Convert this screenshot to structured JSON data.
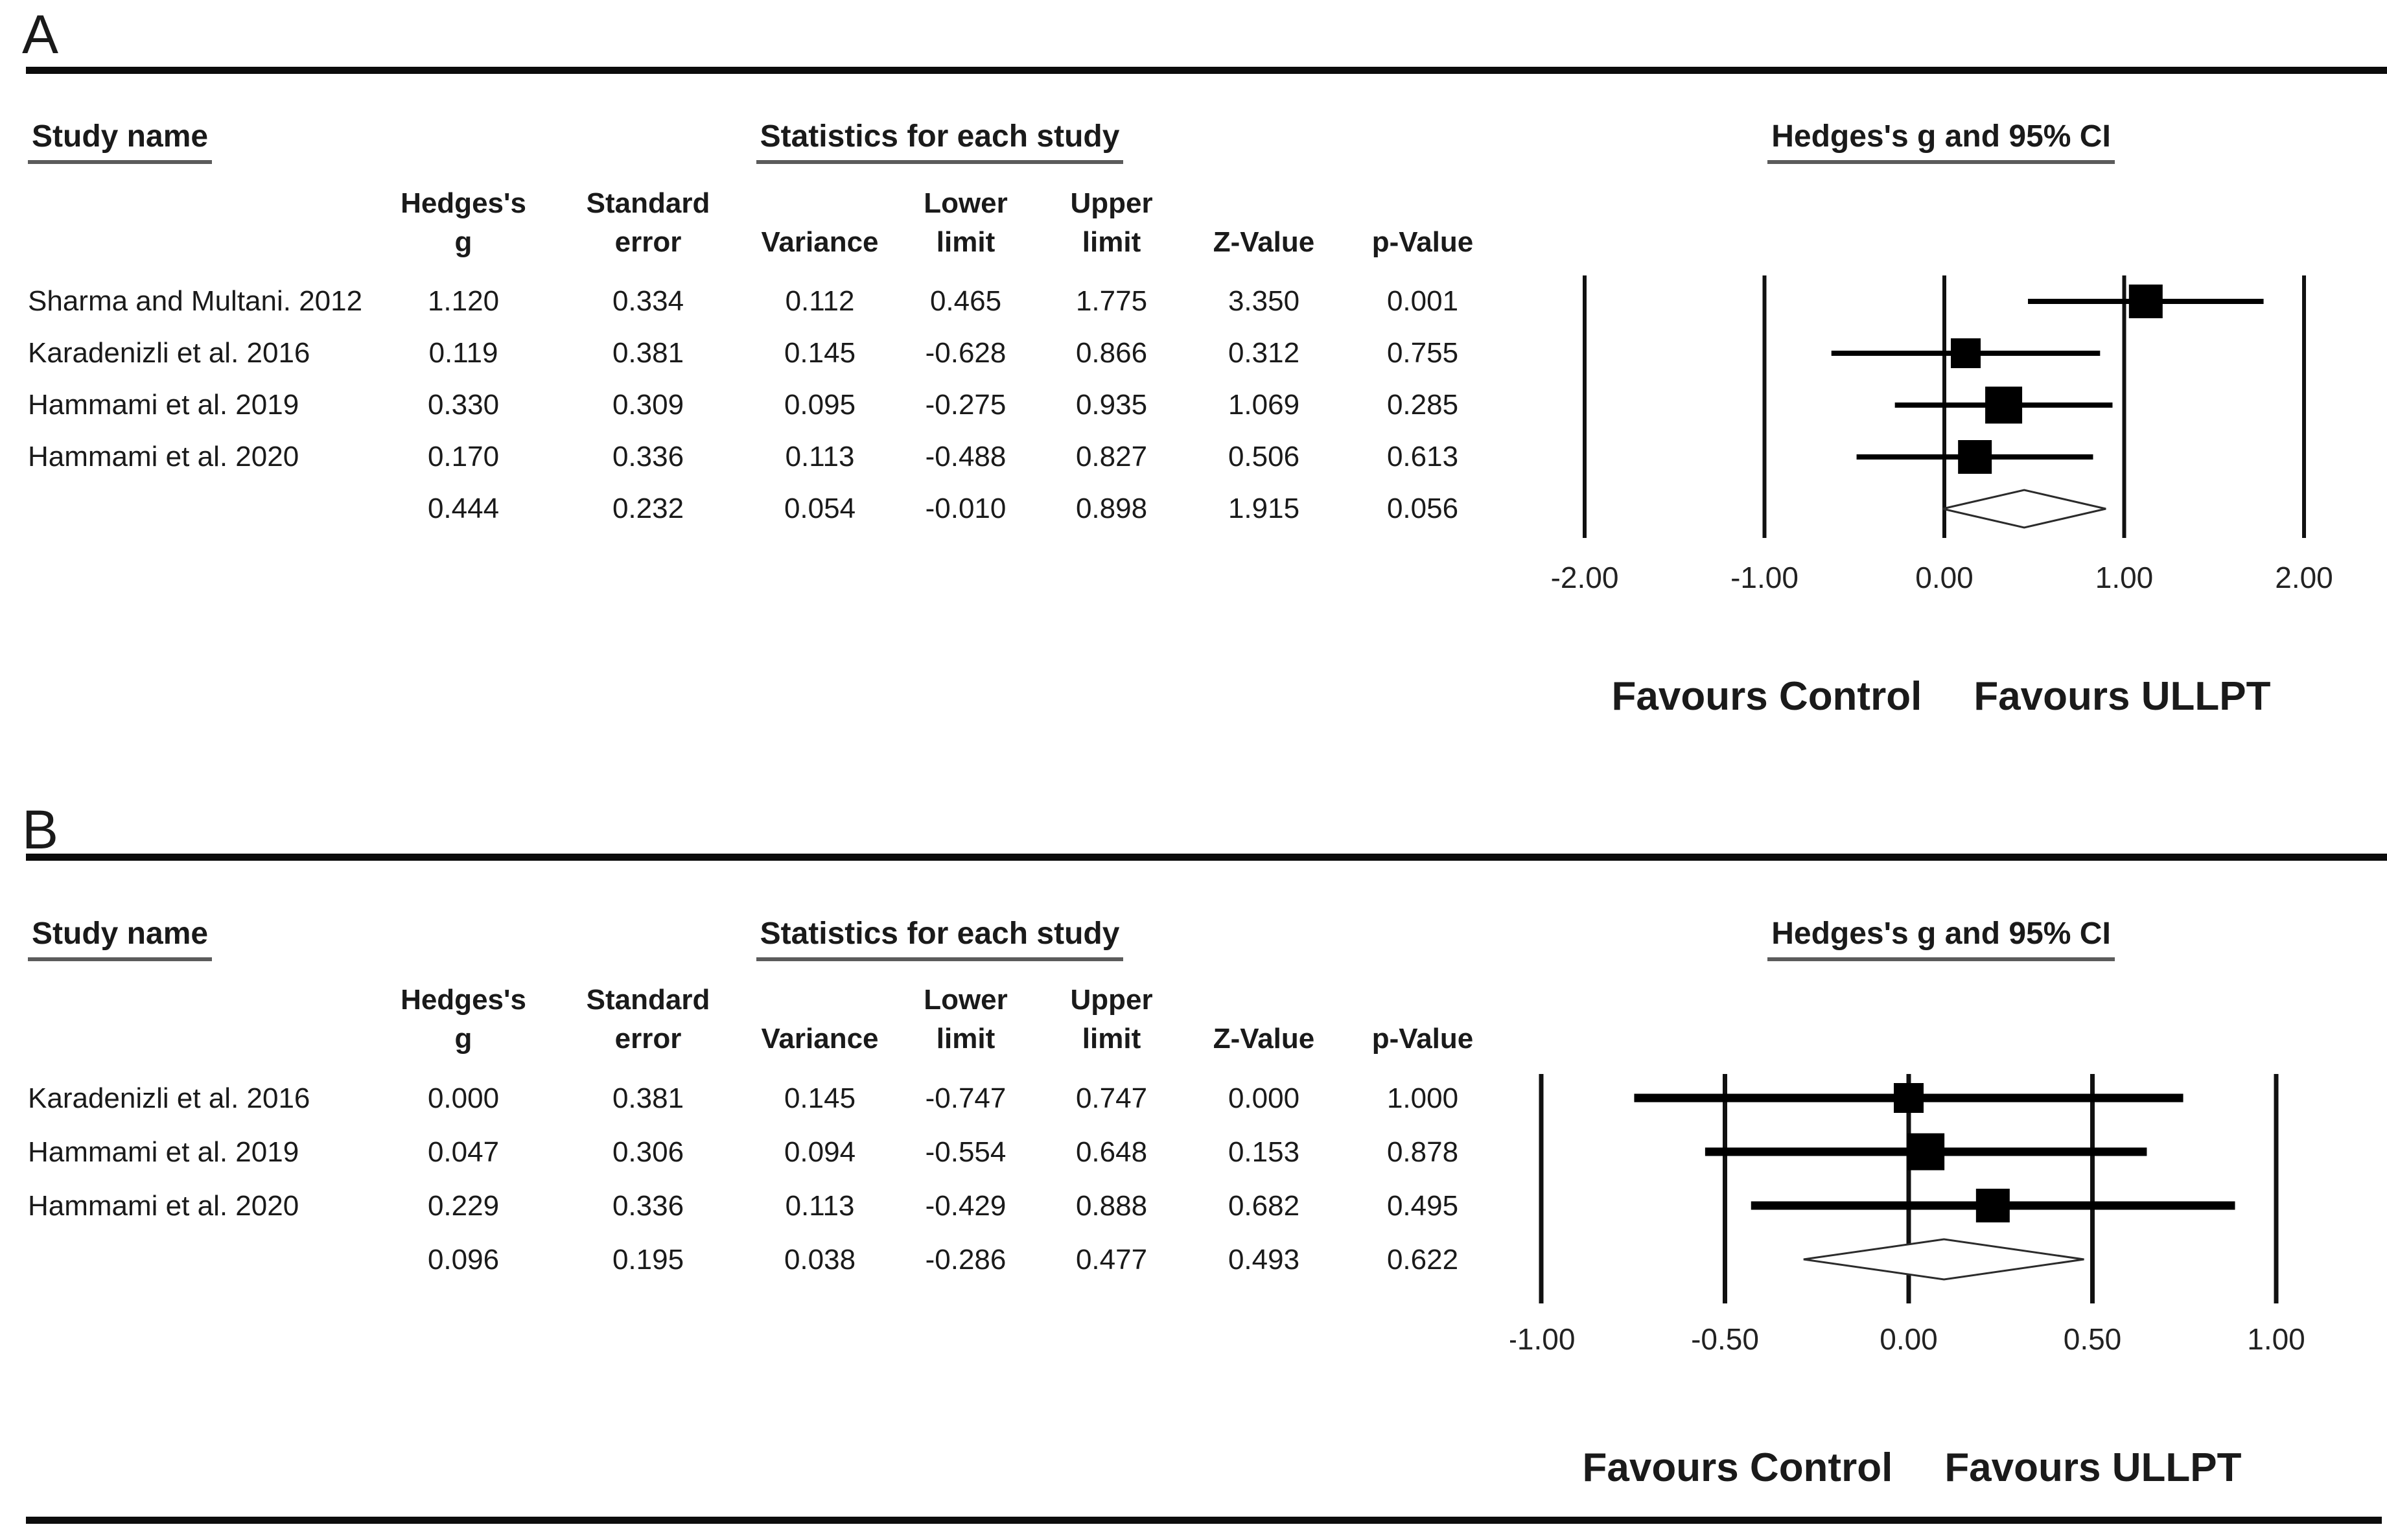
{
  "panels": [
    {
      "label": "A",
      "headers": {
        "study_name": "Study name",
        "statistics": "Statistics for each study",
        "plot": "Hedges's g and 95% CI"
      },
      "columns": {
        "line1": [
          "Hedges's",
          "Standard",
          "",
          "Lower",
          "Upper",
          "",
          ""
        ],
        "line2": [
          "g",
          "error",
          "Variance",
          "limit",
          "limit",
          "Z-Value",
          "p-Value"
        ]
      },
      "rows": [
        {
          "study": "Sharma and Multani. 2012",
          "g": "1.120",
          "se": "0.334",
          "variance": "0.112",
          "lower": "0.465",
          "upper": "1.775",
          "z": "3.350",
          "p": "0.001"
        },
        {
          "study": "Karadenizli et al. 2016",
          "g": "0.119",
          "se": "0.381",
          "variance": "0.145",
          "lower": "-0.628",
          "upper": "0.866",
          "z": "0.312",
          "p": "0.755"
        },
        {
          "study": "Hammami et al. 2019",
          "g": "0.330",
          "se": "0.309",
          "variance": "0.095",
          "lower": "-0.275",
          "upper": "0.935",
          "z": "1.069",
          "p": "0.285"
        },
        {
          "study": "Hammami et al. 2020",
          "g": "0.170",
          "se": "0.336",
          "variance": "0.113",
          "lower": "-0.488",
          "upper": "0.827",
          "z": "0.506",
          "p": "0.613"
        },
        {
          "study": "",
          "g": "0.444",
          "se": "0.232",
          "variance": "0.054",
          "lower": "-0.010",
          "upper": "0.898",
          "z": "1.915",
          "p": "0.056"
        }
      ],
      "axis_labels": [
        "-2.00",
        "-1.00",
        "0.00",
        "1.00",
        "2.00"
      ],
      "favours": {
        "left": "Favours Control",
        "right": "Favours ULLPT"
      }
    },
    {
      "label": "B",
      "headers": {
        "study_name": "Study name",
        "statistics": "Statistics for each study",
        "plot": "Hedges's g and 95% CI"
      },
      "columns": {
        "line1": [
          "Hedges's",
          "Standard",
          "",
          "Lower",
          "Upper",
          "",
          ""
        ],
        "line2": [
          "g",
          "error",
          "Variance",
          "limit",
          "limit",
          "Z-Value",
          "p-Value"
        ]
      },
      "rows": [
        {
          "study": "Karadenizli et al. 2016",
          "g": "0.000",
          "se": "0.381",
          "variance": "0.145",
          "lower": "-0.747",
          "upper": "0.747",
          "z": "0.000",
          "p": "1.000"
        },
        {
          "study": "Hammami et al. 2019",
          "g": "0.047",
          "se": "0.306",
          "variance": "0.094",
          "lower": "-0.554",
          "upper": "0.648",
          "z": "0.153",
          "p": "0.878"
        },
        {
          "study": "Hammami et al. 2020",
          "g": "0.229",
          "se": "0.336",
          "variance": "0.113",
          "lower": "-0.429",
          "upper": "0.888",
          "z": "0.682",
          "p": "0.495"
        },
        {
          "study": "",
          "g": "0.096",
          "se": "0.195",
          "variance": "0.038",
          "lower": "-0.286",
          "upper": "0.477",
          "z": "0.493",
          "p": "0.622"
        }
      ],
      "axis_labels": [
        "-1.00",
        "-0.50",
        "0.00",
        "0.50",
        "1.00"
      ],
      "favours": {
        "left": "Favours Control",
        "right": "Favours ULLPT"
      }
    }
  ],
  "chart_data": [
    {
      "type": "forest",
      "panel": "A",
      "title": "Hedges's g and 95% CI",
      "effect_measure": "Hedges's g",
      "x_axis": {
        "min": -2.0,
        "max": 2.0,
        "ticks": [
          -2.0,
          -1.0,
          0.0,
          1.0,
          2.0
        ]
      },
      "direction_labels": {
        "left": "Favours Control",
        "right": "Favours ULLPT"
      },
      "studies": [
        {
          "name": "Sharma and Multani. 2012",
          "g": 1.12,
          "se": 0.334,
          "variance": 0.112,
          "lower": 0.465,
          "upper": 1.775,
          "z": 3.35,
          "p": 0.001
        },
        {
          "name": "Karadenizli et al. 2016",
          "g": 0.119,
          "se": 0.381,
          "variance": 0.145,
          "lower": -0.628,
          "upper": 0.866,
          "z": 0.312,
          "p": 0.755
        },
        {
          "name": "Hammami et al. 2019",
          "g": 0.33,
          "se": 0.309,
          "variance": 0.095,
          "lower": -0.275,
          "upper": 0.935,
          "z": 1.069,
          "p": 0.285
        },
        {
          "name": "Hammami et al. 2020",
          "g": 0.17,
          "se": 0.336,
          "variance": 0.113,
          "lower": -0.488,
          "upper": 0.827,
          "z": 0.506,
          "p": 0.613
        }
      ],
      "summary": {
        "g": 0.444,
        "se": 0.232,
        "variance": 0.054,
        "lower": -0.01,
        "upper": 0.898,
        "z": 1.915,
        "p": 0.056
      }
    },
    {
      "type": "forest",
      "panel": "B",
      "title": "Hedges's g and 95% CI",
      "effect_measure": "Hedges's g",
      "x_axis": {
        "min": -1.0,
        "max": 1.0,
        "ticks": [
          -1.0,
          -0.5,
          0.0,
          0.5,
          1.0
        ]
      },
      "direction_labels": {
        "left": "Favours Control",
        "right": "Favours ULLPT"
      },
      "studies": [
        {
          "name": "Karadenizli et al. 2016",
          "g": 0.0,
          "se": 0.381,
          "variance": 0.145,
          "lower": -0.747,
          "upper": 0.747,
          "z": 0.0,
          "p": 1.0
        },
        {
          "name": "Hammami et al. 2019",
          "g": 0.047,
          "se": 0.306,
          "variance": 0.094,
          "lower": -0.554,
          "upper": 0.648,
          "z": 0.153,
          "p": 0.878
        },
        {
          "name": "Hammami et al. 2020",
          "g": 0.229,
          "se": 0.336,
          "variance": 0.113,
          "lower": -0.429,
          "upper": 0.888,
          "z": 0.682,
          "p": 0.495
        }
      ],
      "summary": {
        "g": 0.096,
        "se": 0.195,
        "variance": 0.038,
        "lower": -0.286,
        "upper": 0.477,
        "z": 0.493,
        "p": 0.622
      }
    }
  ]
}
